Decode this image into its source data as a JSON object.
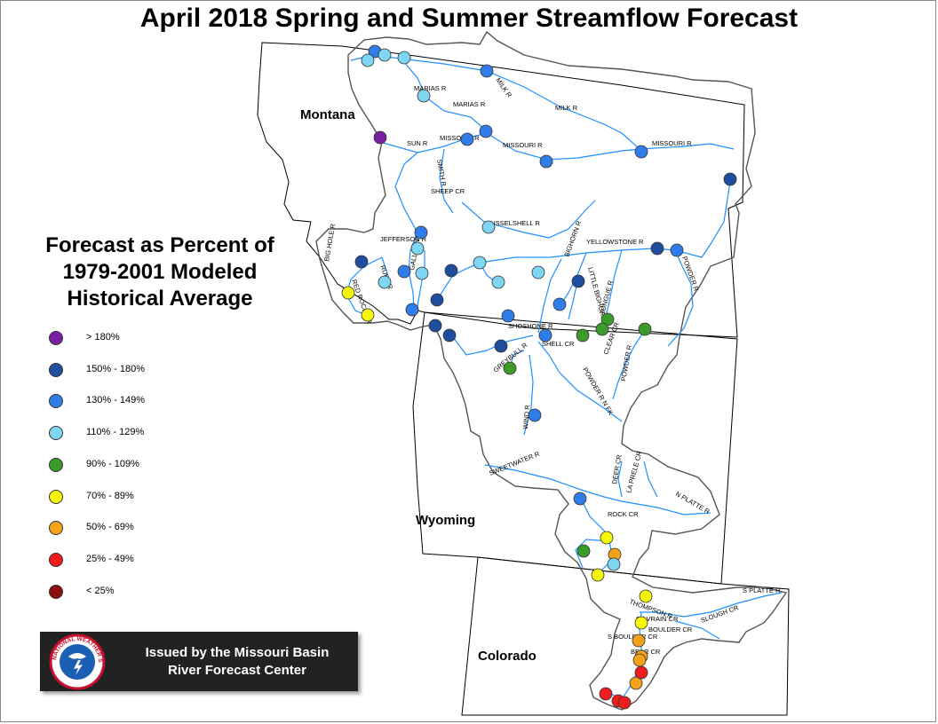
{
  "title": "April 2018 Spring and Summer Streamflow Forecast",
  "states": [
    {
      "name": "Montana"
    },
    {
      "name": "Wyoming"
    },
    {
      "name": "Colorado"
    }
  ],
  "legend": {
    "title_lines": [
      "Forecast as Percent of",
      "1979-2001 Modeled",
      "Historical Average"
    ],
    "items": [
      {
        "label": "> 180%",
        "color": "#7b1fa2"
      },
      {
        "label": "150% - 180%",
        "color": "#1f4e9e"
      },
      {
        "label": "130% - 149%",
        "color": "#2f7de8"
      },
      {
        "label": "110% - 129%",
        "color": "#7fd6f2"
      },
      {
        "label": "90% - 109%",
        "color": "#3a9a2a"
      },
      {
        "label": "70% - 89%",
        "color": "#f6f60a"
      },
      {
        "label": "50% - 69%",
        "color": "#f5a21b"
      },
      {
        "label": "25% - 49%",
        "color": "#ee1c1c"
      },
      {
        "label": "< 25%",
        "color": "#8b0f0f"
      }
    ]
  },
  "badge": {
    "lines": [
      "Issued by the Missouri Basin",
      "River Forecast Center"
    ],
    "logo_text": "NATIONAL WEATHER SERVICE"
  },
  "river_labels": [
    "MILK R",
    "MARIAS R",
    "MARIAS R",
    "MILK R",
    "MISSOURI R",
    "SUN R",
    "MISSOURI R",
    "MISSOURI R",
    "SMITH R",
    "SHEEP CR",
    "MUSSELSHELL R",
    "JEFFERSON R",
    "BIG HOLE R",
    "RUBY R",
    "GALLATIN R",
    "RED ROCK CR",
    "YELLOWSTONE R",
    "POWDER R",
    "BIGHORN R",
    "LITTLE BIGHORN R",
    "TONGUE R",
    "SHOSHONE R",
    "SHELL CR",
    "CLEAR CR",
    "GREYBULL R",
    "POWDER R N FK",
    "POWDER R",
    "WIND R",
    "SWEETWATER R",
    "DEER CR",
    "LA PRELE CR",
    "N PLATTE R",
    "ROCK CR",
    "THOMPSON R",
    "S PLATTE R",
    "S BOULDER CR",
    "BEAR CR",
    "BOULDER CR",
    "ST VRAIN CR",
    "SLOUGH CR"
  ],
  "stations": [
    {
      "category": "130% - 149%"
    },
    {
      "category": "110% - 129%"
    },
    {
      "category": "110% - 129%"
    },
    {
      "category": "110% - 129%"
    },
    {
      "category": "130% - 149%"
    },
    {
      "category": "110% - 129%"
    },
    {
      "category": "> 180%"
    },
    {
      "category": "130% - 149%"
    },
    {
      "category": "130% - 149%"
    },
    {
      "category": "130% - 149%"
    },
    {
      "category": "130% - 149%"
    },
    {
      "category": "150% - 180%"
    },
    {
      "category": "110% - 129%"
    },
    {
      "category": "130% - 149%"
    },
    {
      "category": "150% - 180%"
    },
    {
      "category": "110% - 129%"
    },
    {
      "category": "110% - 129%"
    },
    {
      "category": "130% - 149%"
    },
    {
      "category": "110% - 129%"
    },
    {
      "category": "110% - 129%"
    },
    {
      "category": "70% - 89%"
    },
    {
      "category": "70% - 89%"
    },
    {
      "category": "130% - 149%"
    },
    {
      "category": "150% - 180%"
    },
    {
      "category": "150% - 180%"
    },
    {
      "category": "110% - 129%"
    },
    {
      "category": "110% - 129%"
    },
    {
      "category": "150% - 180%"
    },
    {
      "category": "130% - 149%"
    },
    {
      "category": "130% - 149%"
    },
    {
      "category": "150% - 180%"
    },
    {
      "category": "130% - 149%"
    },
    {
      "category": "150% - 180%"
    },
    {
      "category": "150% - 180%"
    },
    {
      "category": "150% - 180%"
    },
    {
      "category": "130% - 149%"
    },
    {
      "category": "90% - 109%"
    },
    {
      "category": "90% - 109%"
    },
    {
      "category": "90% - 109%"
    },
    {
      "category": "90% - 109%"
    },
    {
      "category": "90% - 109%"
    },
    {
      "category": "130% - 149%"
    },
    {
      "category": "130% - 149%"
    },
    {
      "category": "70% - 89%"
    },
    {
      "category": "90% - 109%"
    },
    {
      "category": "50% - 69%"
    },
    {
      "category": "110% - 129%"
    },
    {
      "category": "70% - 89%"
    },
    {
      "category": "70% - 89%"
    },
    {
      "category": "70% - 89%"
    },
    {
      "category": "50% - 69%"
    },
    {
      "category": "50% - 69%"
    },
    {
      "category": "50% - 69%"
    },
    {
      "category": "50% - 69%"
    },
    {
      "category": "25% - 49%"
    },
    {
      "category": "25% - 49%"
    },
    {
      "category": "25% - 49%"
    },
    {
      "category": "25% - 49%"
    },
    {
      "category": "25% - 49%"
    }
  ]
}
